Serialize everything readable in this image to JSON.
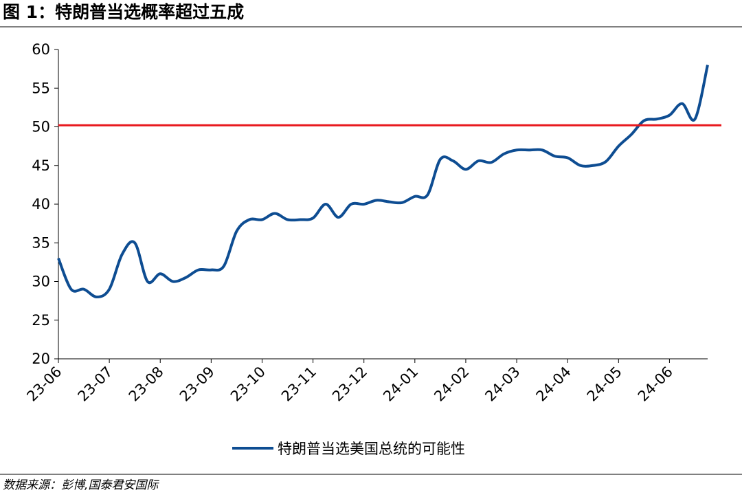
{
  "title": "图 1：特朗普当选概率超过五成",
  "source": "数据来源：彭博,国泰君安国际",
  "chart_data": {
    "type": "line",
    "categories": [
      "23-06",
      null,
      null,
      null,
      "23-07",
      null,
      null,
      null,
      "23-08",
      null,
      null,
      null,
      "23-09",
      null,
      null,
      null,
      "23-10",
      null,
      null,
      null,
      "23-11",
      null,
      null,
      null,
      "23-12",
      null,
      null,
      null,
      "24-01",
      null,
      null,
      null,
      "24-02",
      null,
      null,
      null,
      "24-03",
      null,
      null,
      null,
      "24-04",
      null,
      null,
      null,
      "24-05",
      null,
      null,
      null,
      "24-06",
      null,
      null,
      null
    ],
    "series": [
      {
        "name": "特朗普当选美国总统的可能性",
        "color": "#0e4d92",
        "values": [
          33,
          29,
          29,
          28,
          29,
          33.5,
          35,
          30,
          31,
          30,
          30.5,
          31.5,
          31.5,
          32,
          36.5,
          38,
          38,
          38.8,
          38,
          38,
          38.2,
          40,
          38.3,
          40,
          40,
          40.5,
          40.3,
          40.2,
          41,
          41.2,
          45.8,
          45.6,
          44.5,
          45.6,
          45.4,
          46.5,
          47,
          47,
          47,
          46.2,
          46,
          45,
          45,
          45.5,
          47.5,
          49,
          50.8,
          51,
          51.5,
          53,
          51,
          58
        ]
      }
    ],
    "reference_line": {
      "value": 50.2,
      "color": "#e8161b"
    },
    "ylim": [
      20,
      60
    ],
    "yticks": [
      20,
      25,
      30,
      35,
      40,
      45,
      50,
      55,
      60
    ],
    "legend": "bottom"
  }
}
